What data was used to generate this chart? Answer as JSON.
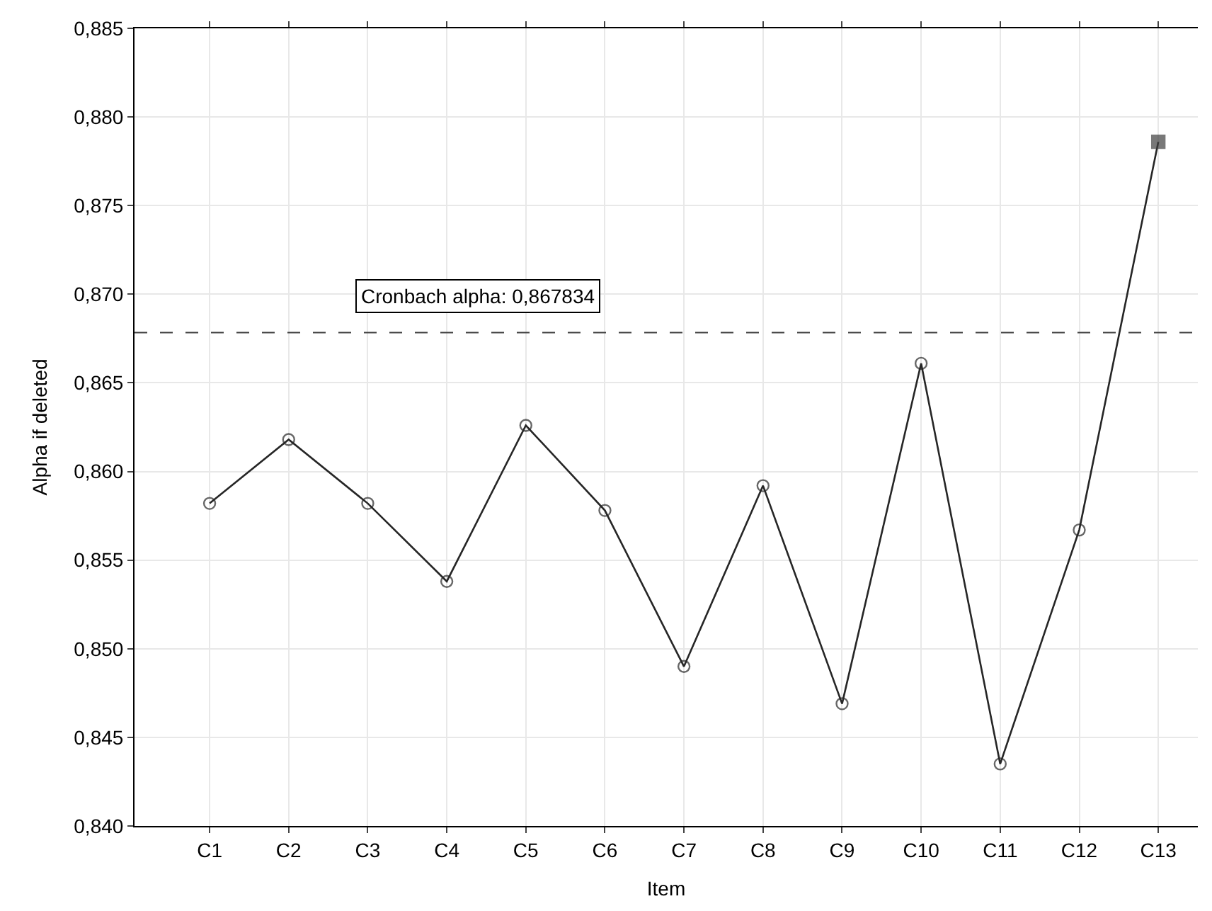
{
  "chart_data": {
    "type": "line",
    "xlabel": "Item",
    "ylabel": "Alpha if deleted",
    "categories": [
      "C1",
      "C2",
      "C3",
      "C4",
      "C5",
      "C6",
      "C7",
      "C8",
      "C9",
      "C10",
      "C11",
      "C12",
      "C13"
    ],
    "series": [
      {
        "color": "#262626",
        "marker": "circle",
        "values": [
          0.8582,
          0.8618,
          0.8582,
          0.8538,
          0.8626,
          0.8578,
          0.849,
          0.8592,
          0.8469,
          0.8661,
          0.8435,
          0.8567,
          0.8786
        ]
      },
      {
        "type": "scatter",
        "color": "#404040",
        "marker": "square",
        "values": [
          null,
          null,
          null,
          null,
          null,
          null,
          null,
          null,
          null,
          null,
          null,
          null,
          0.8786
        ]
      }
    ],
    "ylim": [
      0.84,
      0.885
    ],
    "yticks": [
      {
        "value": 0.84,
        "label": "0,840"
      },
      {
        "value": 0.845,
        "label": "0,845"
      },
      {
        "value": 0.85,
        "label": "0,850"
      },
      {
        "value": 0.855,
        "label": "0,855"
      },
      {
        "value": 0.86,
        "label": "0,860"
      },
      {
        "value": 0.865,
        "label": "0,865"
      },
      {
        "value": 0.87,
        "label": "0,870"
      },
      {
        "value": 0.875,
        "label": "0,875"
      },
      {
        "value": 0.88,
        "label": "0,880"
      },
      {
        "value": 0.885,
        "label": "0,885"
      }
    ],
    "ref_lines": [
      {
        "axis": "y",
        "value": 0.867834,
        "label": "Cronbach alpha: 0,867834",
        "color": "#404040",
        "line_style": "dashed"
      }
    ],
    "grid": true
  }
}
